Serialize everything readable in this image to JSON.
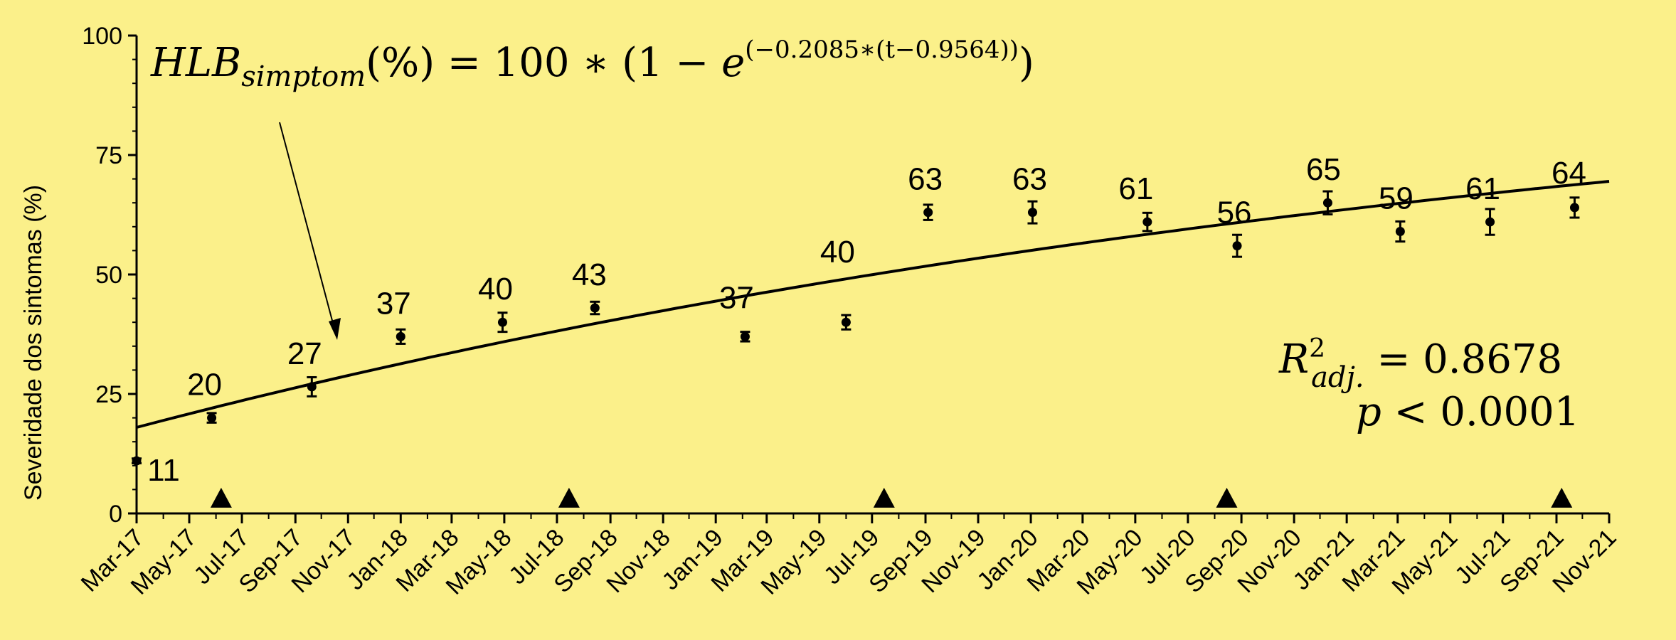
{
  "colors": {
    "background": "#fbf08a",
    "ink": "#000000"
  },
  "chart_data": {
    "type": "scatter",
    "ylabel": "Severidade dos sintomas (%)",
    "xlabel": "",
    "ylim": [
      0,
      100
    ],
    "yticks": [
      0,
      25,
      50,
      75,
      100
    ],
    "xlim": [
      "2017-03",
      "2021-11"
    ],
    "xtick_labels": [
      "Mar-17",
      "May-17",
      "Jul-17",
      "Sep-17",
      "Nov-17",
      "Jan-18",
      "Mar-18",
      "May-18",
      "Jul-18",
      "Sep-18",
      "Nov-18",
      "Jan-19",
      "Mar-19",
      "May-19",
      "Jul-19",
      "Sep-19",
      "Nov-19",
      "Jan-20",
      "Mar-20",
      "May-20",
      "Jul-20",
      "Sep-20",
      "Nov-20",
      "Jan-21",
      "Mar-21",
      "May-21",
      "Jul-21",
      "Sep-21",
      "Nov-21"
    ],
    "series": [
      {
        "values": [
          {
            "x": "2017-03-01",
            "y": 11,
            "err": 0.5,
            "label": "11"
          },
          {
            "x": "2017-05-27",
            "y": 20,
            "err": 1,
            "label": "20"
          },
          {
            "x": "2017-09-20",
            "y": 26.5,
            "err": 2,
            "label": "27"
          },
          {
            "x": "2018-01-01",
            "y": 37,
            "err": 1.5,
            "label": "37"
          },
          {
            "x": "2018-04-29",
            "y": 40,
            "err": 2,
            "label": "40"
          },
          {
            "x": "2018-08-14",
            "y": 43,
            "err": 1.3,
            "label": "43"
          },
          {
            "x": "2019-02-04",
            "y": 37,
            "err": 1,
            "label": "37"
          },
          {
            "x": "2019-06-01",
            "y": 40,
            "err": 1.5,
            "label": "40"
          },
          {
            "x": "2019-09-04",
            "y": 63,
            "err": 1.6,
            "label": "63"
          },
          {
            "x": "2020-01-03",
            "y": 63,
            "err": 2.3,
            "label": "63"
          },
          {
            "x": "2020-05-15",
            "y": 61,
            "err": 1.9,
            "label": "61"
          },
          {
            "x": "2020-08-27",
            "y": 56,
            "err": 2.3,
            "label": "56"
          },
          {
            "x": "2020-12-10",
            "y": 65,
            "err": 2.4,
            "label": "65"
          },
          {
            "x": "2021-03-04",
            "y": 59,
            "err": 2.1,
            "label": "59"
          },
          {
            "x": "2021-06-16",
            "y": 61,
            "err": 2.7,
            "label": "61"
          },
          {
            "x": "2021-09-22",
            "y": 64,
            "err": 2.1,
            "label": "64"
          }
        ]
      }
    ],
    "fit_curve": {
      "description": "HLB_simptom(%) = 100*(1 - e^(-0.2085*(t-0.9564)))",
      "samples": [
        {
          "x": "2017-03-01",
          "y": 18
        },
        {
          "x": "2018-08-01",
          "y": 38
        },
        {
          "x": "2020-08-01",
          "y": 59.5
        },
        {
          "x": "2021-11-01",
          "y": 69.5
        }
      ]
    },
    "triangle_markers": [
      "2017-06-07",
      "2018-07-15",
      "2019-07-15",
      "2020-08-15",
      "2021-09-07"
    ],
    "triangle_y": 3
  },
  "annotations": {
    "formula_lhs": "HLB",
    "formula_sub": "simptom",
    "formula_mid": "(%) = 100 ∗ (1 − ",
    "formula_e": "e",
    "formula_exp": "(−0.2085∗(t−0.9564))",
    "formula_close": ")",
    "r2_main": "R",
    "r2_sup": "2",
    "r2_sub": "adj.",
    "r2_value": " = 0.8678",
    "p_text": "p",
    "p_value": " < 0.0001"
  }
}
